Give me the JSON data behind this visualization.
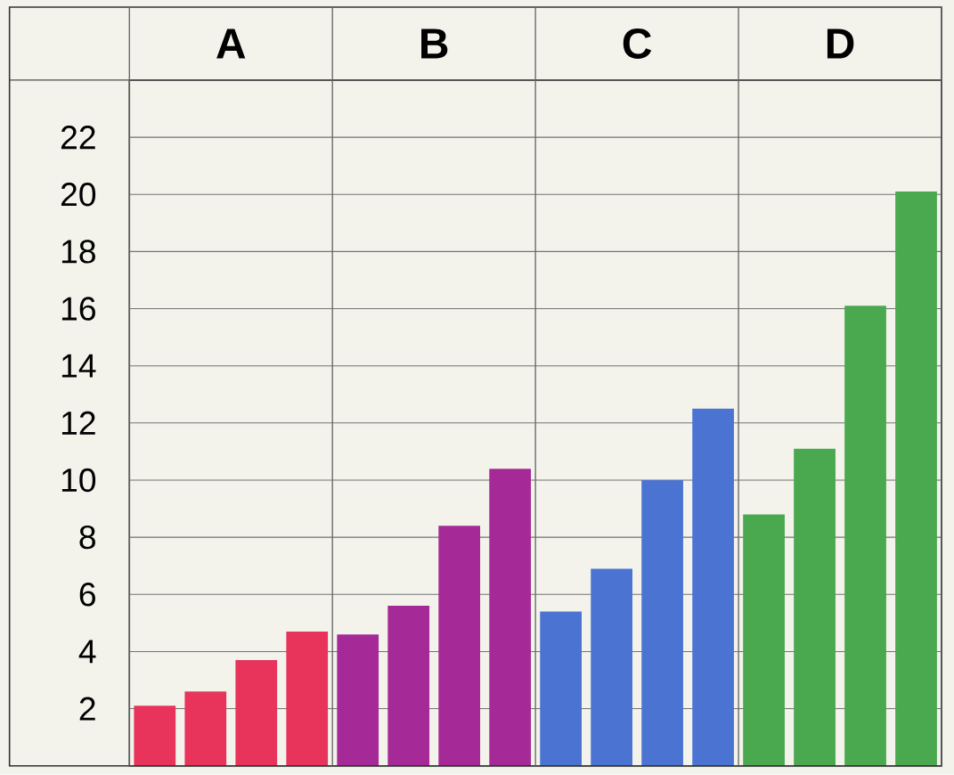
{
  "chart_data": {
    "type": "bar",
    "categories": [
      "A",
      "B",
      "C",
      "D"
    ],
    "series": [
      {
        "colors": [
          "#e8335a",
          "#a52a98",
          "#4b74d2",
          "#4aa84f"
        ],
        "values": [
          2.1,
          4.6,
          5.4,
          8.8
        ]
      },
      {
        "colors": [
          "#e8335a",
          "#a52a98",
          "#4b74d2",
          "#4aa84f"
        ],
        "values": [
          2.6,
          5.6,
          6.9,
          11.1
        ]
      },
      {
        "colors": [
          "#e8335a",
          "#a52a98",
          "#4b74d2",
          "#4aa84f"
        ],
        "values": [
          3.7,
          8.4,
          10.0,
          16.1
        ]
      },
      {
        "colors": [
          "#e8335a",
          "#a52a98",
          "#4b74d2",
          "#4aa84f"
        ],
        "values": [
          4.7,
          10.4,
          12.5,
          20.1
        ]
      }
    ],
    "ylim": [
      0,
      24
    ],
    "yticks": [
      2,
      4,
      6,
      8,
      10,
      12,
      14,
      16,
      18,
      20,
      22
    ],
    "grid": "y"
  }
}
